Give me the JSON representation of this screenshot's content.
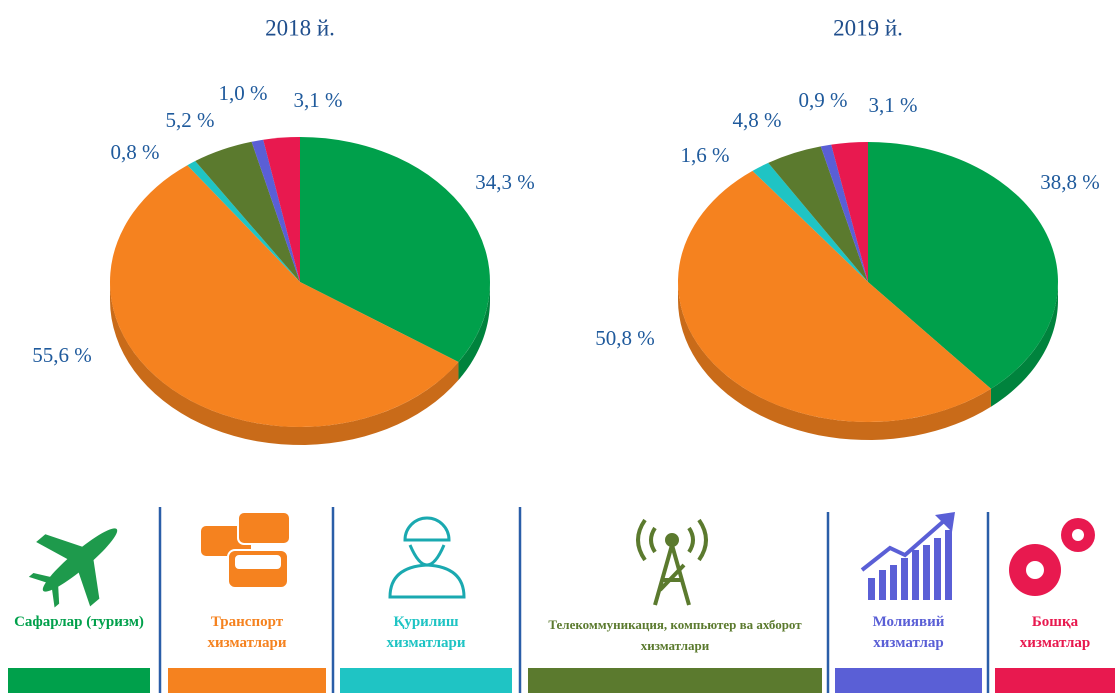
{
  "chart_data": [
    {
      "type": "pie",
      "title": "2018 й.",
      "values": [
        34.3,
        55.6,
        0.8,
        5.2,
        1.0,
        3.1
      ],
      "value_labels": [
        "34,3 %",
        "55,6 %",
        "0,8 %",
        "5,2 %",
        "1,0 %",
        "3,1 %"
      ]
    },
    {
      "type": "pie",
      "title": "2019 й.",
      "values": [
        38.8,
        50.8,
        1.6,
        4.8,
        0.9,
        3.1
      ],
      "value_labels": [
        "38,8 %",
        "50,8 %",
        "1,6 %",
        "4,8 %",
        "0,9 %",
        "3,1 %"
      ]
    }
  ],
  "legend": {
    "labels": [
      "Сафарлар (туризм)",
      "Транспорт хизматлари",
      "Қурилиш хизматлари",
      "Телекоммуникация, компьютер ва ахборот хизматлари",
      "Молиявий хизматлар",
      "Бошқа хизматлар"
    ],
    "colors": [
      "#00a04b",
      "#f5821f",
      "#1fc4c4",
      "#5b7a2e",
      "#5a5fd6",
      "#e8194f"
    ]
  }
}
